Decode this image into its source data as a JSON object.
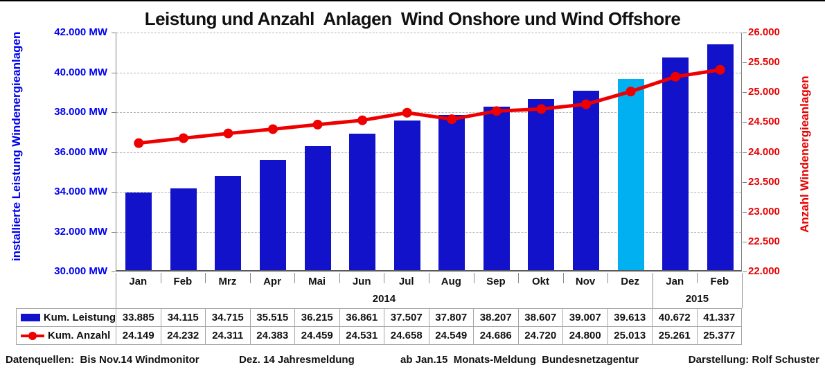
{
  "title": "Leistung und Anzahl  Anlagen  Wind Onshore und Wind Offshore",
  "left_axis": {
    "title": "installierte Leistung Windenergieanlagen",
    "color": "#0000EE",
    "min": 30000,
    "max": 42000,
    "step": 2000,
    "tick_labels": [
      "42.000 MW",
      "40.000 MW",
      "38.000 MW",
      "36.000 MW",
      "34.000 MW",
      "32.000 MW",
      "30.000 MW"
    ]
  },
  "right_axis": {
    "title": "Anzahl Windenergieanlagen",
    "color": "#E80000",
    "min": 22000,
    "max": 26000,
    "step": 500,
    "tick_labels": [
      "26.000",
      "25.500",
      "25.000",
      "24.500",
      "24.000",
      "23.500",
      "23.000",
      "22.500",
      "22.000"
    ]
  },
  "chart_data": {
    "type": "bar+line",
    "grid": "dashed horizontal",
    "legend_position": "table-left",
    "categories": [
      "Jan",
      "Feb",
      "Mrz",
      "Apr",
      "Mai",
      "Jun",
      "Jul",
      "Aug",
      "Sep",
      "Okt",
      "Nov",
      "Dez",
      "Jan",
      "Feb"
    ],
    "year_groups": [
      {
        "label": "2014",
        "span": 12
      },
      {
        "label": "2015",
        "span": 2
      }
    ],
    "series": [
      {
        "name": "Kum. Leistung",
        "type": "bar",
        "axis": "left",
        "color": "#1212CB",
        "highlight_index": 11,
        "highlight_color": "#00B0F0",
        "values": [
          33885,
          34115,
          34715,
          35515,
          36215,
          36861,
          37507,
          37807,
          38207,
          38607,
          39007,
          39613,
          40672,
          41337
        ]
      },
      {
        "name": "Kum. Anzahl",
        "type": "line",
        "axis": "right",
        "color": "#EE0000",
        "values": [
          24149,
          24232,
          24311,
          24383,
          24459,
          24531,
          24658,
          24549,
          24686,
          24720,
          24800,
          25013,
          25261,
          25377
        ]
      }
    ]
  },
  "table": {
    "rows": [
      {
        "label": "Kum. Leistung",
        "swatch": "bar",
        "values": [
          "33.885",
          "34.115",
          "34.715",
          "35.515",
          "36.215",
          "36.861",
          "37.507",
          "37.807",
          "38.207",
          "38.607",
          "39.007",
          "39.613",
          "40.672",
          "41.337"
        ]
      },
      {
        "label": "Kum. Anzahl",
        "swatch": "line",
        "values": [
          "24.149",
          "24.232",
          "24.311",
          "24.383",
          "24.459",
          "24.531",
          "24.658",
          "24.549",
          "24.686",
          "24.720",
          "24.800",
          "25.013",
          "25.261",
          "25.377"
        ]
      }
    ]
  },
  "footer": {
    "sources": "Datenquellen:  Bis Nov.14 Windmonitor",
    "source_dez": "Dez. 14 Jahresmeldung",
    "source_jan": "ab Jan.15  Monats-Meldung  Bundesnetzagentur",
    "credit": "Darstellung: Rolf Schuster"
  }
}
